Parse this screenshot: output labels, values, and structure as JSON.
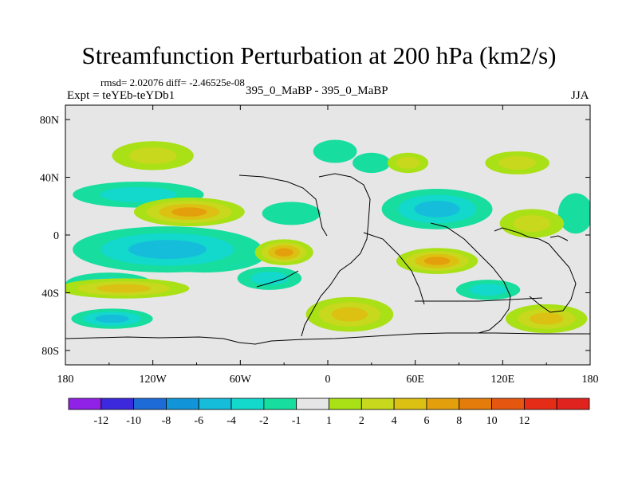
{
  "chart_data": {
    "type": "heatmap",
    "title": "Streamfunction Perturbation at 200 hPa (km2/s)",
    "stats": "rmsd= 2.02076 diff= -2.46525e-08",
    "expt": "Expt = teYEb-teYDb1",
    "subtitle": "395_0_MaBP - 395_0_MaBP",
    "season": "JJA",
    "xlim": [
      -180,
      180
    ],
    "ylim": [
      -90,
      90
    ],
    "x_ticks": [
      {
        "value": -180,
        "label": "180"
      },
      {
        "value": -120,
        "label": "120W"
      },
      {
        "value": -60,
        "label": "60W"
      },
      {
        "value": 0,
        "label": "0"
      },
      {
        "value": 60,
        "label": "60E"
      },
      {
        "value": 120,
        "label": "120E"
      },
      {
        "value": 180,
        "label": "180"
      }
    ],
    "y_ticks": [
      {
        "value": 80,
        "label": "80N"
      },
      {
        "value": 40,
        "label": "40N"
      },
      {
        "value": 0,
        "label": "0"
      },
      {
        "value": -40,
        "label": "40S"
      },
      {
        "value": -80,
        "label": "80S"
      }
    ],
    "colorbar": {
      "colors": [
        "#8f22e6",
        "#3c29dd",
        "#1c6bd6",
        "#1195d8",
        "#15bddb",
        "#13d8cc",
        "#17dd9f",
        "#e6e6e6",
        "#a9e016",
        "#c8d81c",
        "#dcc012",
        "#e4a00c",
        "#e47c0c",
        "#e55610",
        "#e52c17",
        "#e0231f"
      ],
      "labels": [
        "-12",
        "-10",
        "-8",
        "-6",
        "-4",
        "-2",
        "-1",
        "1",
        "2",
        "4",
        "6",
        "8",
        "10",
        "12"
      ]
    },
    "anomalies": [
      {
        "lon": -85,
        "lat": -14,
        "value": -8,
        "rx": 42,
        "ry": 12
      },
      {
        "lon": -110,
        "lat": -10,
        "value": -4,
        "rx": 65,
        "ry": 16
      },
      {
        "lon": -130,
        "lat": 28,
        "value": -2,
        "rx": 45,
        "ry": 9
      },
      {
        "lon": -150,
        "lat": -34,
        "value": -2,
        "rx": 30,
        "ry": 8
      },
      {
        "lon": -148,
        "lat": -58,
        "value": -4,
        "rx": 28,
        "ry": 7
      },
      {
        "lon": -40,
        "lat": -30,
        "value": -2,
        "rx": 22,
        "ry": 8
      },
      {
        "lon": 75,
        "lat": 18,
        "value": -4,
        "rx": 38,
        "ry": 14
      },
      {
        "lon": -25,
        "lat": 15,
        "value": -1,
        "rx": 20,
        "ry": 8
      },
      {
        "lon": 5,
        "lat": 58,
        "value": -1,
        "rx": 15,
        "ry": 8
      },
      {
        "lon": 30,
        "lat": 50,
        "value": -1,
        "rx": 13,
        "ry": 7
      },
      {
        "lon": 110,
        "lat": -38,
        "value": -2,
        "rx": 22,
        "ry": 7
      },
      {
        "lon": 170,
        "lat": 15,
        "value": -1,
        "rx": 12,
        "ry": 14
      },
      {
        "lon": -120,
        "lat": 55,
        "value": 2,
        "rx": 28,
        "ry": 10
      },
      {
        "lon": -95,
        "lat": 16,
        "value": 6,
        "rx": 38,
        "ry": 10
      },
      {
        "lon": -140,
        "lat": -37,
        "value": 4,
        "rx": 45,
        "ry": 7
      },
      {
        "lon": -30,
        "lat": -12,
        "value": 6,
        "rx": 20,
        "ry": 9
      },
      {
        "lon": 15,
        "lat": -55,
        "value": 4,
        "rx": 30,
        "ry": 12
      },
      {
        "lon": 75,
        "lat": -18,
        "value": 6,
        "rx": 28,
        "ry": 9
      },
      {
        "lon": 150,
        "lat": -58,
        "value": 4,
        "rx": 28,
        "ry": 10
      },
      {
        "lon": 55,
        "lat": 50,
        "value": 2,
        "rx": 14,
        "ry": 7
      },
      {
        "lon": 130,
        "lat": 50,
        "value": 2,
        "rx": 22,
        "ry": 8
      },
      {
        "lon": 140,
        "lat": 8,
        "value": 2,
        "rx": 22,
        "ry": 10
      }
    ]
  }
}
